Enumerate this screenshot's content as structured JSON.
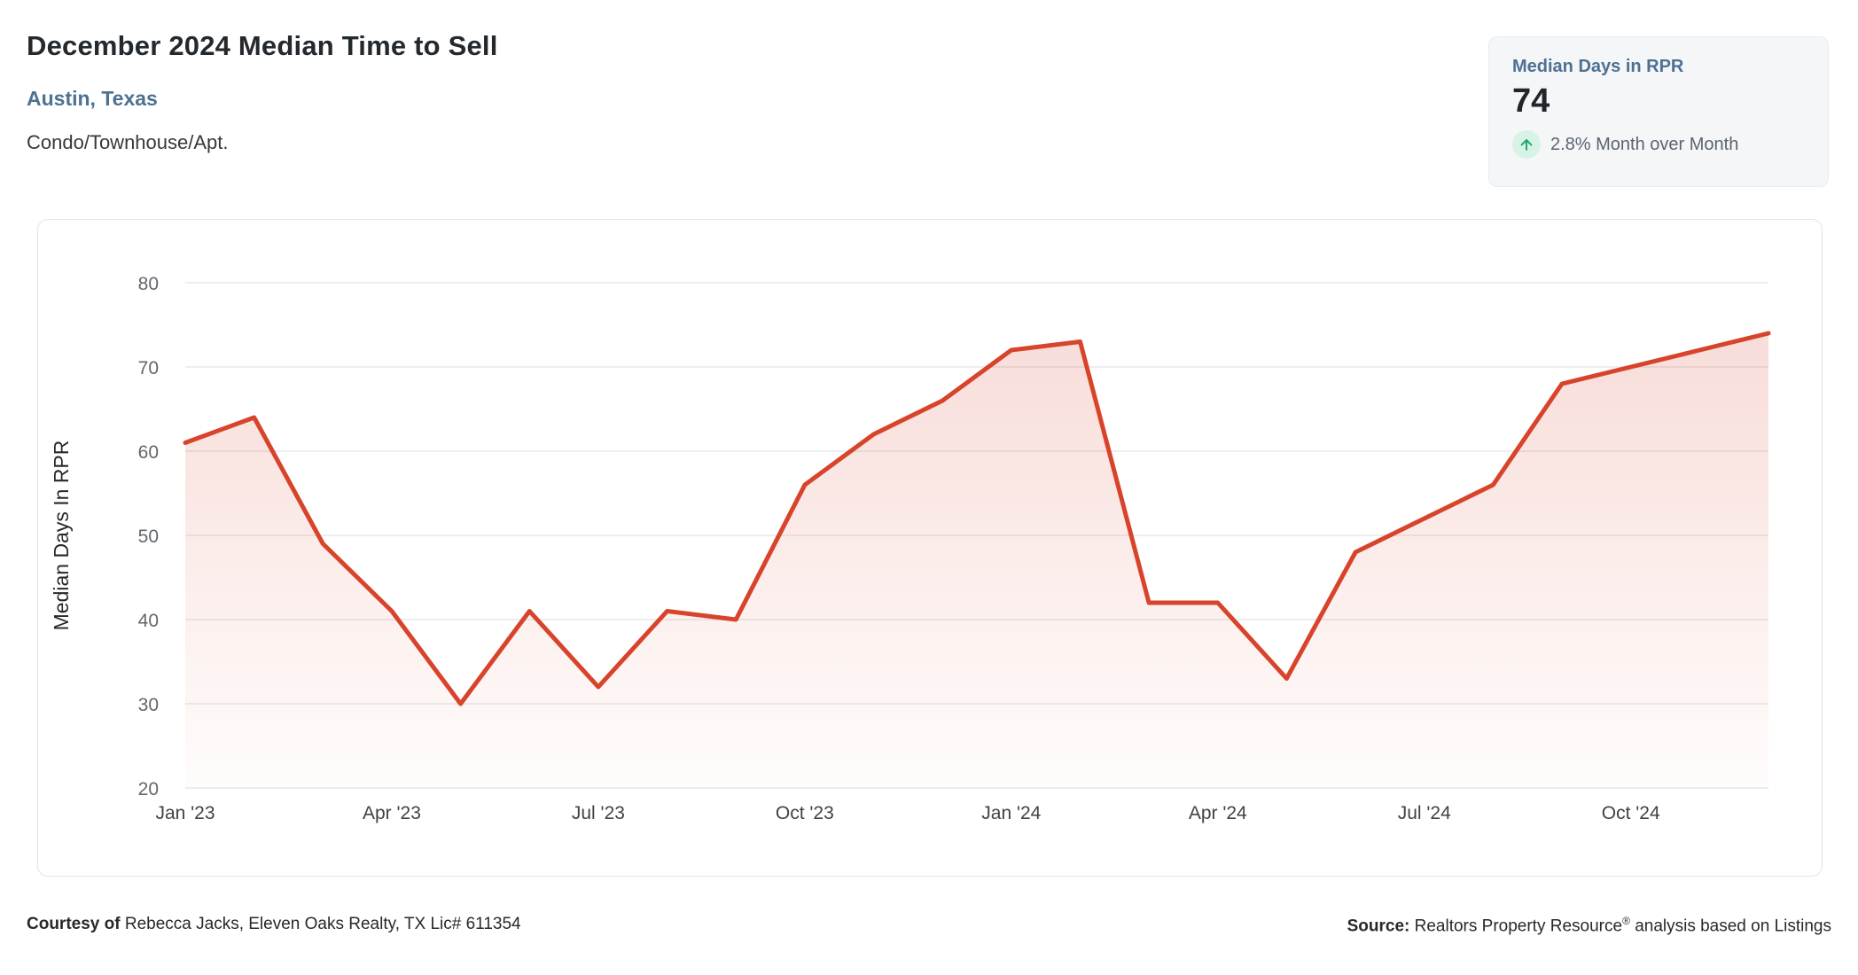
{
  "header": {
    "title": "December 2024 Median Time to Sell",
    "location": "Austin, Texas",
    "property_type": "Condo/Townhouse/Apt."
  },
  "stat_card": {
    "title": "Median Days in RPR",
    "value": "74",
    "trend_direction": "up",
    "trend_label": "2.8% Month over Month",
    "trend_color": "#1fa76c",
    "trend_bg": "#d7f3e6"
  },
  "chart_data": {
    "type": "area",
    "x": [
      "Jan '23",
      "Feb '23",
      "Mar '23",
      "Apr '23",
      "May '23",
      "Jun '23",
      "Jul '23",
      "Aug '23",
      "Sep '23",
      "Oct '23",
      "Nov '23",
      "Dec '23",
      "Jan '24",
      "Feb '24",
      "Mar '24",
      "Apr '24",
      "May '24",
      "Jun '24",
      "Jul '24",
      "Aug '24",
      "Sep '24",
      "Oct '24",
      "Nov '24",
      "Dec '24"
    ],
    "values": [
      61,
      64,
      49,
      41,
      30,
      41,
      32,
      41,
      40,
      56,
      62,
      66,
      72,
      73,
      42,
      42,
      33,
      48,
      52,
      56,
      68,
      70,
      72,
      74
    ],
    "title": "",
    "xlabel": "",
    "ylabel": "Median Days In RPR",
    "ylim": [
      20,
      80
    ],
    "y_ticks": [
      80,
      70,
      60,
      50,
      40,
      30,
      20
    ],
    "x_tick_labels": [
      "Jan '23",
      "Apr '23",
      "Jul '23",
      "Oct '23",
      "Jan '24",
      "Apr '24",
      "Jul '24",
      "Oct '24"
    ],
    "x_tick_every": 3,
    "grid": "horizontal",
    "legend": "none",
    "line_color": "#d8432b",
    "area_top_color": "rgba(216,67,43,0.18)",
    "area_bottom_color": "rgba(216,67,43,0.015)",
    "gridline_color": "#e7e8ea",
    "tick_color": "#63676c",
    "xtick_color": "#3f4347",
    "axis_title_color": "#26292c"
  },
  "footer": {
    "courtesy_prefix": "Courtesy of",
    "courtesy_text": "Rebecca Jacks, Eleven Oaks Realty, TX Lic# 611354",
    "source_prefix": "Source:",
    "source_name": "Realtors Property Resource",
    "source_reg": "®",
    "source_suffix": "analysis based on Listings"
  }
}
